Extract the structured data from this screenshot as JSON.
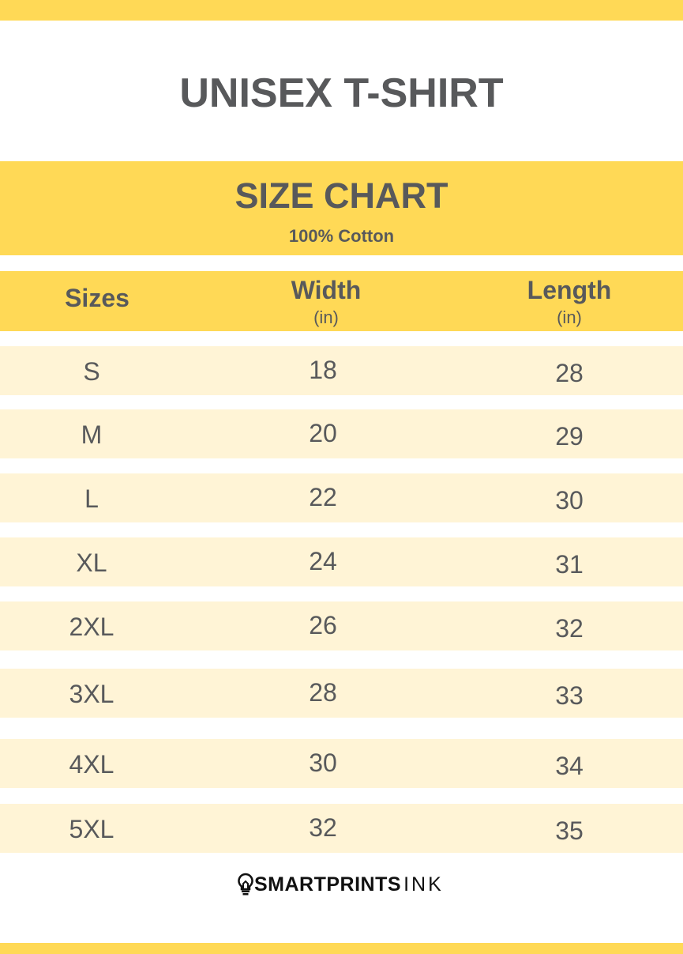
{
  "title": "UNISEX T-SHIRT",
  "chart": {
    "title": "SIZE CHART",
    "subtitle": "100% Cotton"
  },
  "columns": [
    {
      "label": "Sizes",
      "unit": ""
    },
    {
      "label": "Width",
      "unit": "(in)"
    },
    {
      "label": "Length",
      "unit": "(in)"
    }
  ],
  "rows": [
    {
      "size": "S",
      "width": "18",
      "length": "28"
    },
    {
      "size": "M",
      "width": "20",
      "length": "29"
    },
    {
      "size": "L",
      "width": "22",
      "length": "30"
    },
    {
      "size": "XL",
      "width": "24",
      "length": "31"
    },
    {
      "size": "2XL",
      "width": "26",
      "length": "32"
    },
    {
      "size": "3XL",
      "width": "28",
      "length": "33"
    },
    {
      "size": "4XL",
      "width": "30",
      "length": "34"
    },
    {
      "size": "5XL",
      "width": "32",
      "length": "35"
    }
  ],
  "brand": {
    "bold": "SMARTPRINTS",
    "thin": "INK",
    "icon": "lightbulb-icon"
  },
  "colors": {
    "accent": "#ffd956",
    "row": "#fff4d6",
    "text": "#58595b"
  }
}
